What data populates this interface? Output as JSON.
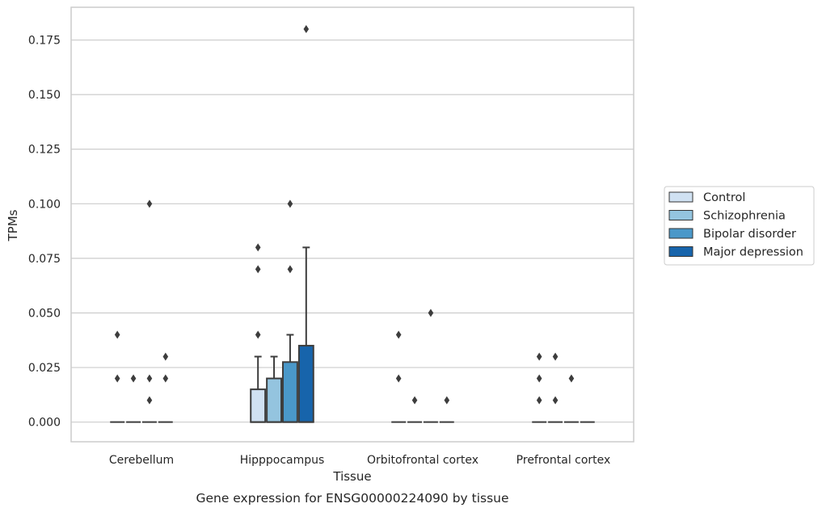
{
  "chart_data": {
    "type": "box",
    "caption": "Gene expression for ENSG00000224090 by tissue",
    "xlabel": "Tissue",
    "ylabel": "TPMs",
    "ylim": [
      -0.009,
      0.19
    ],
    "yticks": [
      0,
      0.025,
      0.05,
      0.075,
      0.1,
      0.125,
      0.15,
      0.175
    ],
    "ytick_labels": [
      "0.000",
      "0.025",
      "0.050",
      "0.075",
      "0.100",
      "0.125",
      "0.150",
      "0.175"
    ],
    "grid": "horizontal",
    "legend_position": "right",
    "categories": [
      "Cerebellum",
      "Hipppocampus",
      "Orbitofrontal cortex",
      "Prefrontal cortex"
    ],
    "series": [
      {
        "name": "Control",
        "color": "#d0e1f2",
        "boxes": [
          {
            "q1": 0,
            "median": 0,
            "q3": 0,
            "whisker_low": 0,
            "whisker_high": 0,
            "outliers": [
              0.02,
              0.04
            ]
          },
          {
            "q1": 0,
            "median": 0,
            "q3": 0.015,
            "whisker_low": 0,
            "whisker_high": 0.03,
            "outliers": [
              0.04,
              0.07,
              0.08
            ]
          },
          {
            "q1": 0,
            "median": 0,
            "q3": 0,
            "whisker_low": 0,
            "whisker_high": 0,
            "outliers": [
              0.02,
              0.04
            ]
          },
          {
            "q1": 0,
            "median": 0,
            "q3": 0,
            "whisker_low": 0,
            "whisker_high": 0,
            "outliers": [
              0.01,
              0.02,
              0.03
            ]
          }
        ]
      },
      {
        "name": "Schizophrenia",
        "color": "#94c4df",
        "boxes": [
          {
            "q1": 0,
            "median": 0,
            "q3": 0,
            "whisker_low": 0,
            "whisker_high": 0,
            "outliers": [
              0.02
            ]
          },
          {
            "q1": 0,
            "median": 0,
            "q3": 0.02,
            "whisker_low": 0,
            "whisker_high": 0.03,
            "outliers": []
          },
          {
            "q1": 0,
            "median": 0,
            "q3": 0,
            "whisker_low": 0,
            "whisker_high": 0,
            "outliers": [
              0.01
            ]
          },
          {
            "q1": 0,
            "median": 0,
            "q3": 0,
            "whisker_low": 0,
            "whisker_high": 0,
            "outliers": [
              0.01,
              0.03
            ]
          }
        ]
      },
      {
        "name": "Bipolar disorder",
        "color": "#4a98c9",
        "boxes": [
          {
            "q1": 0,
            "median": 0,
            "q3": 0,
            "whisker_low": 0,
            "whisker_high": 0,
            "outliers": [
              0.01,
              0.02,
              0.1
            ]
          },
          {
            "q1": 0,
            "median": 0,
            "q3": 0.0275,
            "whisker_low": 0,
            "whisker_high": 0.04,
            "outliers": [
              0.07,
              0.1
            ]
          },
          {
            "q1": 0,
            "median": 0,
            "q3": 0,
            "whisker_low": 0,
            "whisker_high": 0,
            "outliers": [
              0.05
            ]
          },
          {
            "q1": 0,
            "median": 0,
            "q3": 0,
            "whisker_low": 0,
            "whisker_high": 0,
            "outliers": [
              0.02
            ]
          }
        ]
      },
      {
        "name": "Major depression",
        "color": "#1764ab",
        "boxes": [
          {
            "q1": 0,
            "median": 0,
            "q3": 0,
            "whisker_low": 0,
            "whisker_high": 0,
            "outliers": [
              0.02,
              0.03
            ]
          },
          {
            "q1": 0,
            "median": 0,
            "q3": 0.035,
            "whisker_low": 0,
            "whisker_high": 0.08,
            "outliers": [
              0.18
            ]
          },
          {
            "q1": 0,
            "median": 0,
            "q3": 0,
            "whisker_low": 0,
            "whisker_high": 0,
            "outliers": [
              0.01
            ]
          },
          {
            "q1": 0,
            "median": 0,
            "q3": 0,
            "whisker_low": 0,
            "whisker_high": 0,
            "outliers": []
          }
        ]
      }
    ]
  }
}
